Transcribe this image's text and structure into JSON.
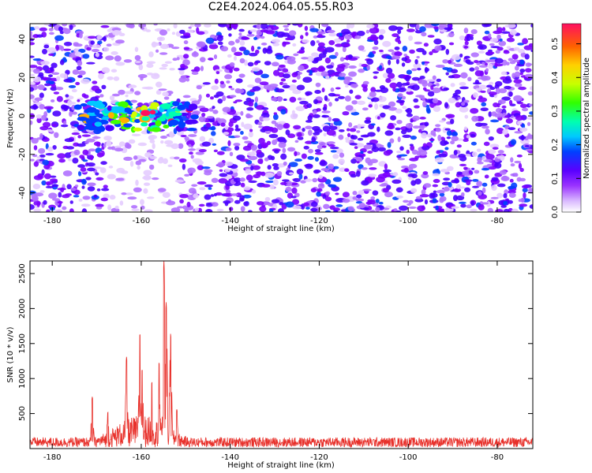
{
  "title": "C2E4.2024.064.05.55.R03",
  "chart_data": [
    {
      "type": "heatmap",
      "title": "C2E4.2024.064.05.55.R03",
      "xlabel": "Height of straight line (km)",
      "ylabel": "Frequency (Hz)",
      "xlim": [
        -185,
        -72
      ],
      "ylim": [
        -50,
        48
      ],
      "x_ticks": [
        -180,
        -160,
        -140,
        -120,
        -100,
        -80
      ],
      "y_ticks": [
        -40,
        -20,
        0,
        20,
        40
      ],
      "colorbar": {
        "label": "Normalized spectral amplitude",
        "range": [
          0,
          0.56
        ],
        "ticks": [
          0.0,
          0.1,
          0.2,
          0.3,
          0.4,
          0.5
        ]
      },
      "features": {
        "strong_band": {
          "x_range": [
            -175,
            -148
          ],
          "frequency_center": 0,
          "frequency_halfwidth": 8,
          "peak_amplitude": 0.55
        },
        "empty_region": {
          "x_range": [
            -168,
            -151
          ],
          "note": "low amplitude outside band"
        }
      }
    },
    {
      "type": "line",
      "xlabel": "Height of straight line (km)",
      "ylabel": "SNR (10 * v/v)",
      "xlim": [
        -185,
        -72
      ],
      "ylim": [
        0,
        2680
      ],
      "x_ticks": [
        -180,
        -160,
        -140,
        -120,
        -100,
        -80
      ],
      "y_ticks": [
        500,
        1000,
        1500,
        2000,
        2500
      ],
      "color": "#e8302a",
      "baseline": 160,
      "peaks": [
        {
          "x": -171.0,
          "y": 740
        },
        {
          "x": -167.5,
          "y": 520
        },
        {
          "x": -163.3,
          "y": 1310
        },
        {
          "x": -160.3,
          "y": 1640
        },
        {
          "x": -159.8,
          "y": 1130
        },
        {
          "x": -157.6,
          "y": 950
        },
        {
          "x": -156.0,
          "y": 1230
        },
        {
          "x": -154.9,
          "y": 2680
        },
        {
          "x": -154.4,
          "y": 2090
        },
        {
          "x": -153.4,
          "y": 1640
        },
        {
          "x": -152.0,
          "y": 560
        }
      ]
    }
  ]
}
